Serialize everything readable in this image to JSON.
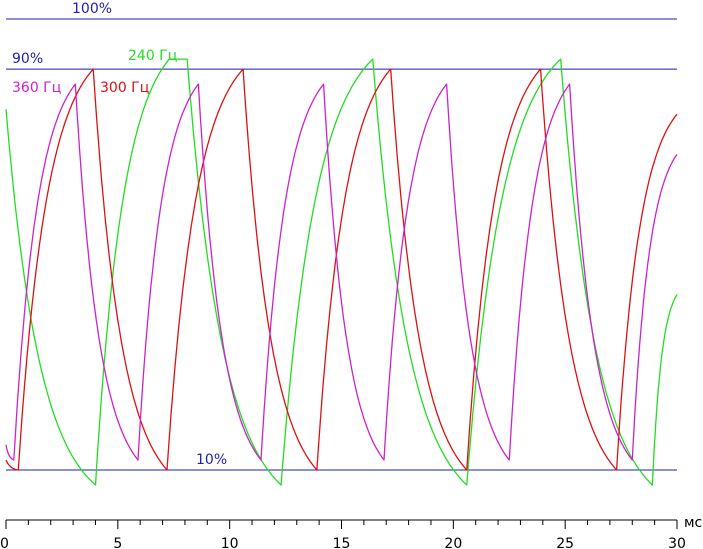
{
  "chart_data": {
    "type": "line",
    "title": "",
    "xlabel": "мс",
    "ylabel": "",
    "xlim": [
      0,
      30
    ],
    "ylim": [
      0,
      100
    ],
    "x_ticks": [
      "0",
      "5",
      "10",
      "15",
      "20",
      "25",
      "30"
    ],
    "x_minor_step": 1,
    "grid": false,
    "reference_lines": [
      {
        "label": "100%",
        "value": 100,
        "color": "#1f1fa8"
      },
      {
        "label": "90%",
        "value": 90,
        "color": "#1f1fa8"
      },
      {
        "label": "10%",
        "value": 10,
        "color": "#1f1fa8"
      }
    ],
    "series": [
      {
        "name": "240 Гц",
        "color": "#22dd22",
        "x": [
          0,
          4.0,
          7.3,
          8.1,
          12.3,
          16.4,
          20.6,
          24.8,
          28.9,
          30
        ],
        "y": [
          82,
          7,
          92,
          92,
          7,
          92,
          7,
          92,
          7,
          45
        ]
      },
      {
        "name": "300 Гц",
        "color": "#dd1111",
        "x": [
          0,
          0.55,
          3.9,
          7.2,
          10.6,
          13.9,
          17.2,
          20.6,
          23.9,
          27.3,
          30
        ],
        "y": [
          12,
          10,
          90,
          10,
          90,
          10,
          90,
          10,
          90,
          10,
          81
        ]
      },
      {
        "name": "360 Гц",
        "color": "#cc22cc",
        "x": [
          0,
          0.35,
          3.1,
          5.9,
          8.6,
          11.4,
          14.2,
          16.9,
          19.7,
          22.5,
          25.2,
          28.0,
          30
        ],
        "y": [
          15,
          12,
          87,
          12,
          87,
          12,
          87,
          12,
          87,
          12,
          87,
          12,
          73
        ]
      }
    ]
  }
}
